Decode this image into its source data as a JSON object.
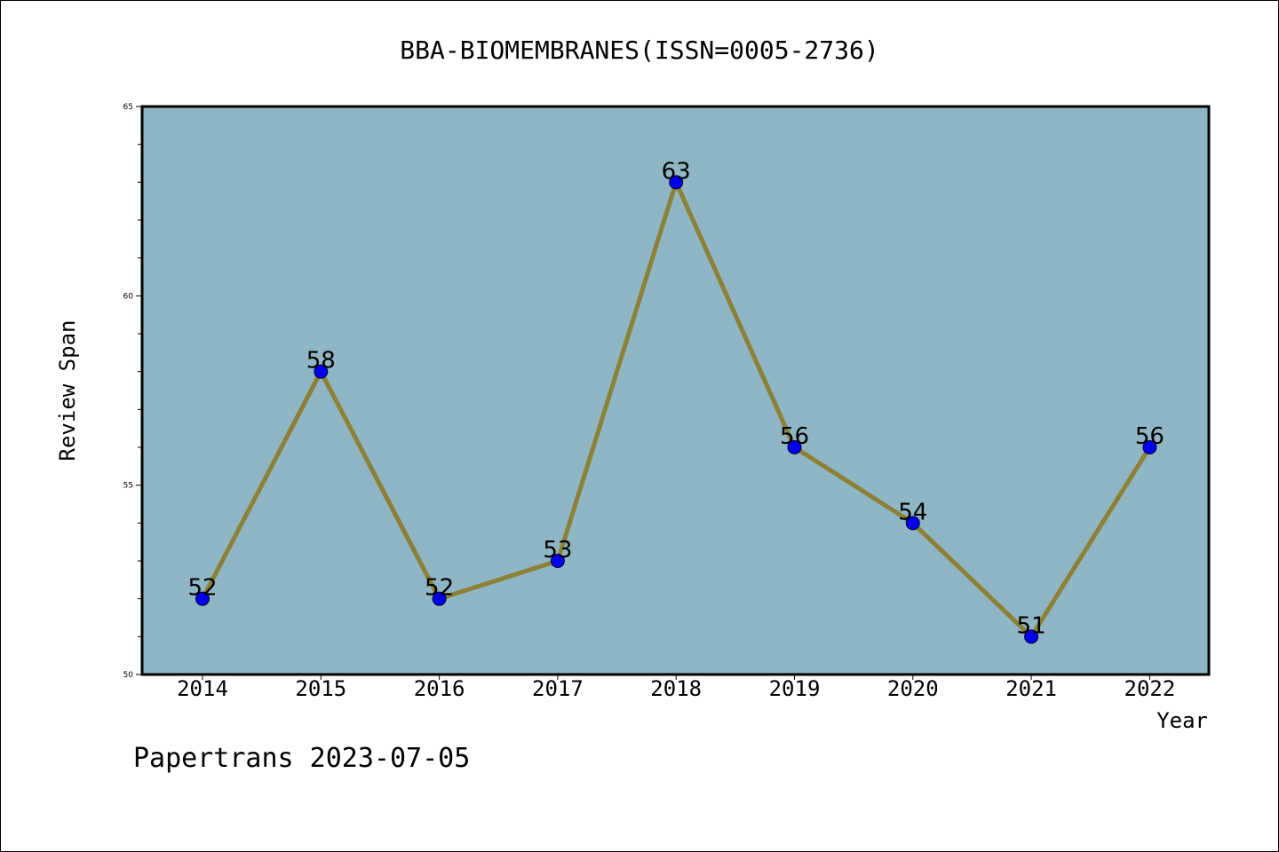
{
  "chart_data": {
    "type": "line",
    "title": "BBA-BIOMEMBRANES(ISSN=0005-2736)",
    "xlabel": "Year",
    "ylabel": "Review Span",
    "x": [
      "2014",
      "2015",
      "2016",
      "2017",
      "2018",
      "2019",
      "2020",
      "2021",
      "2022"
    ],
    "series": [
      {
        "values": [
          52,
          58,
          52,
          53,
          63,
          56,
          54,
          51,
          56
        ]
      }
    ],
    "data_labels": [
      "52",
      "58",
      "52",
      "53",
      "63",
      "56",
      "54",
      "51",
      "56"
    ],
    "ylim": [
      50,
      65
    ],
    "yticks": [
      50,
      55,
      60,
      65
    ],
    "grid": false,
    "colors": {
      "plot_background": "#8fb6c4",
      "line": "#8c8036",
      "marker": "#0000ee"
    }
  },
  "footer": {
    "text": "Papertrans 2023-07-05"
  }
}
